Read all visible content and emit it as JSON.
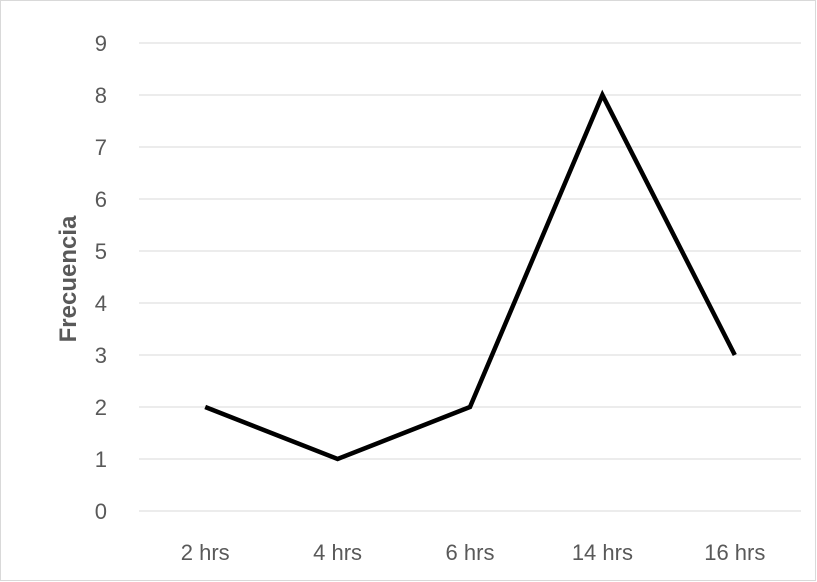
{
  "chart_data": {
    "type": "line",
    "title": "",
    "xlabel": "",
    "ylabel": "Frecuencia",
    "categories": [
      "2 hrs",
      "4 hrs",
      "6 hrs",
      "14 hrs",
      "16 hrs"
    ],
    "series": [
      {
        "values": [
          2,
          1,
          2,
          8,
          3
        ],
        "color": "#000000"
      }
    ],
    "ylim": [
      0,
      9
    ],
    "y_ticks": [
      "0",
      "1",
      "2",
      "3",
      "4",
      "5",
      "6",
      "7",
      "8",
      "9"
    ],
    "grid": true,
    "legend": "none",
    "colors": {
      "grid": "#d9d9d9",
      "text": "#595959",
      "background": "#ffffff"
    }
  }
}
